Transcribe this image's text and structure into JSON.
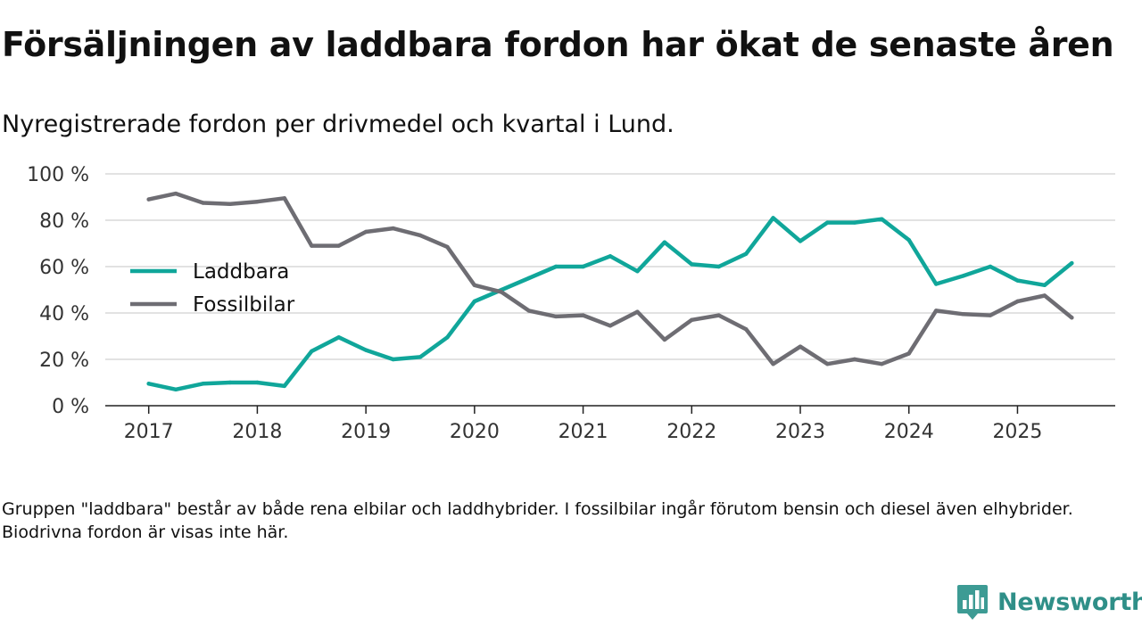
{
  "title": "Försäljningen av laddbara fordon har ökat de senaste åren",
  "subtitle": "Nyregistrerade fordon per drivmedel och kvartal i Lund.",
  "footnote": "Gruppen \"laddbara\" består av både rena elbilar och laddhybrider. I fossilbilar ingår förutom bensin och diesel även elhybrider. Biodrivna fordon är visas inte här.",
  "brand": {
    "name": "Newsworthy",
    "icon": "newsworthy-logo-icon",
    "color": "#2f8f88"
  },
  "chart_data": {
    "type": "line",
    "title": "",
    "xlabel": "",
    "ylabel": "",
    "x_ticks": [
      "2017",
      "2018",
      "2019",
      "2020",
      "2021",
      "2022",
      "2023",
      "2024",
      "2025"
    ],
    "x_tick_values": [
      2017,
      2018,
      2019,
      2020,
      2021,
      2022,
      2023,
      2024,
      2025
    ],
    "xlim": [
      2016.6,
      2025.9
    ],
    "y_ticks": [
      "0 %",
      "20 %",
      "40 %",
      "60 %",
      "80 %",
      "100 %"
    ],
    "y_tick_values": [
      0,
      20,
      40,
      60,
      80,
      100
    ],
    "ylim": [
      0,
      100
    ],
    "grid": true,
    "legend_position": "left-middle",
    "x": [
      2017,
      2017.25,
      2017.5,
      2017.75,
      2018,
      2018.25,
      2018.5,
      2018.75,
      2019,
      2019.25,
      2019.5,
      2019.75,
      2020,
      2020.25,
      2020.5,
      2020.75,
      2021,
      2021.25,
      2021.5,
      2021.75,
      2022,
      2022.25,
      2022.5,
      2022.75,
      2023,
      2023.25,
      2023.5,
      2023.75,
      2024,
      2024.25,
      2024.5,
      2024.75,
      2025,
      2025.25,
      2025.5
    ],
    "series": [
      {
        "name": "Laddbara",
        "color": "#10a69a",
        "values": [
          9.5,
          7,
          9.5,
          10,
          10,
          8.5,
          23.5,
          29.5,
          24,
          20,
          21,
          29.5,
          45,
          50,
          55,
          60,
          60,
          64.5,
          58,
          70.5,
          61,
          60,
          65.5,
          81,
          71,
          79,
          79,
          80.5,
          71.5,
          52.5,
          56,
          60,
          54,
          52,
          61.5
        ]
      },
      {
        "name": "Fossilbilar",
        "color": "#6e6d73",
        "values": [
          89,
          91.5,
          87.5,
          87,
          88,
          89.5,
          69,
          69,
          75,
          76.5,
          73.5,
          68.5,
          52,
          49,
          41,
          38.5,
          39,
          34.5,
          40.5,
          28.5,
          37,
          39,
          33,
          18,
          25.5,
          18,
          20,
          18,
          22.5,
          41,
          39.5,
          39,
          45,
          47.5,
          38
        ]
      }
    ]
  }
}
